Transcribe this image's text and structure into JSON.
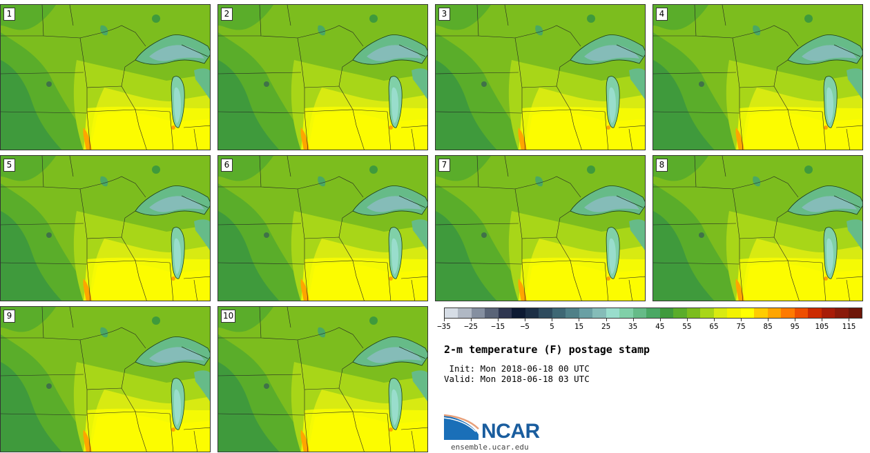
{
  "panels": [
    {
      "label": "1"
    },
    {
      "label": "2"
    },
    {
      "label": "3"
    },
    {
      "label": "4"
    },
    {
      "label": "5"
    },
    {
      "label": "6"
    },
    {
      "label": "7"
    },
    {
      "label": "8"
    },
    {
      "label": "9"
    },
    {
      "label": "10"
    }
  ],
  "colorbar": {
    "colors": [
      "#d6dde6",
      "#b0b8c4",
      "#858fa0",
      "#5a6478",
      "#2e3650",
      "#0d1a33",
      "#1c2e45",
      "#2e4b5e",
      "#3e6774",
      "#4f8088",
      "#6aa0a4",
      "#85bcb8",
      "#99ddcc",
      "#80d0a8",
      "#66bb88",
      "#4aa864",
      "#3f9a3c",
      "#5aad2a",
      "#7cbd1e",
      "#a8d618",
      "#d8ea12",
      "#f2f200",
      "#ffff00",
      "#ffcc00",
      "#ffa500",
      "#ff7a00",
      "#ee4e00",
      "#cc2a00",
      "#a81c08",
      "#8a1a0a",
      "#6e1608"
    ],
    "tick_labels": [
      "−35",
      "−25",
      "−15",
      "−5",
      "5",
      "15",
      "25",
      "35",
      "45",
      "55",
      "65",
      "75",
      "85",
      "95",
      "105",
      "115"
    ]
  },
  "title": "2-m temperature (F) postage stamp",
  "init": " Init: Mon 2018-06-18 00 UTC",
  "valid": "Valid: Mon 2018-06-18 03 UTC",
  "logo": {
    "name": "NCAR",
    "url": "ensemble.ucar.edu"
  }
}
